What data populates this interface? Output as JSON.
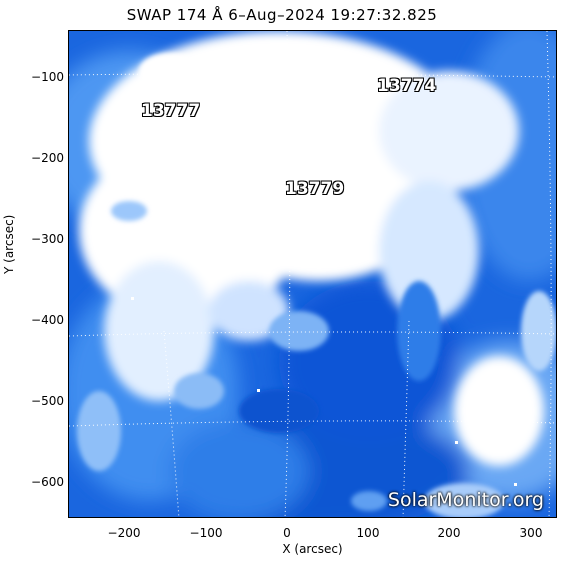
{
  "title": "SWAP  174 Å   6–Aug–2024  19:27:32.825",
  "xaxis": {
    "label": "X (arcsec)",
    "ticks": [
      "−200",
      "−100",
      "0",
      "100",
      "200",
      "300"
    ]
  },
  "yaxis": {
    "label": "Y (arcsec)",
    "ticks": [
      "−100",
      "−200",
      "−300",
      "−400",
      "−500",
      "−600"
    ]
  },
  "regions": {
    "ar1": "13777",
    "ar2": "13774",
    "ar3": "13779"
  },
  "watermark": "SolarMonitor.org",
  "colors": {
    "deep_blue": "#0a55d6",
    "mid_blue": "#3f8ef0",
    "light_blue": "#b9d8ff",
    "white": "#ffffff"
  }
}
